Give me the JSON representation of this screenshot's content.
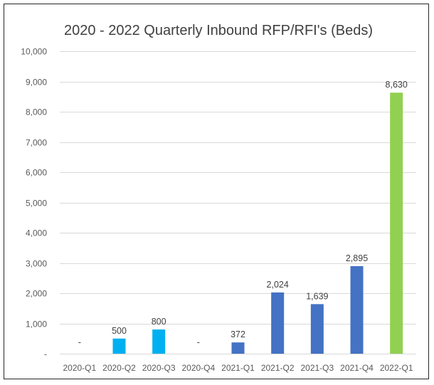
{
  "chart_data": {
    "type": "bar",
    "title": "2020 - 2022 Quarterly Inbound RFP/RFI's (Beds)",
    "xlabel": "",
    "ylabel": "",
    "ylim": [
      0,
      10000
    ],
    "y_ticks": [
      0,
      1000,
      2000,
      3000,
      4000,
      5000,
      6000,
      7000,
      8000,
      9000,
      10000
    ],
    "y_tick_labels": [
      "-",
      "1,000",
      "2,000",
      "3,000",
      "4,000",
      "5,000",
      "6,000",
      "7,000",
      "8,000",
      "9,000",
      "10,000"
    ],
    "grid": true,
    "legend": "none",
    "categories": [
      "2020-Q1",
      "2020-Q2",
      "2020-Q3",
      "2020-Q4",
      "2021-Q1",
      "2021-Q2",
      "2021-Q3",
      "2021-Q4",
      "2022-Q1"
    ],
    "values": [
      0,
      500,
      800,
      0,
      372,
      2024,
      1639,
      2895,
      8630
    ],
    "data_labels": [
      "-",
      "500",
      "800",
      "-",
      "372",
      "2,024",
      "1,639",
      "2,895",
      "8,630"
    ],
    "bar_colors": [
      "#00b0f0",
      "#00b0f0",
      "#00b0f0",
      "#00b0f0",
      "#4472c4",
      "#4472c4",
      "#4472c4",
      "#4472c4",
      "#92d050"
    ]
  }
}
